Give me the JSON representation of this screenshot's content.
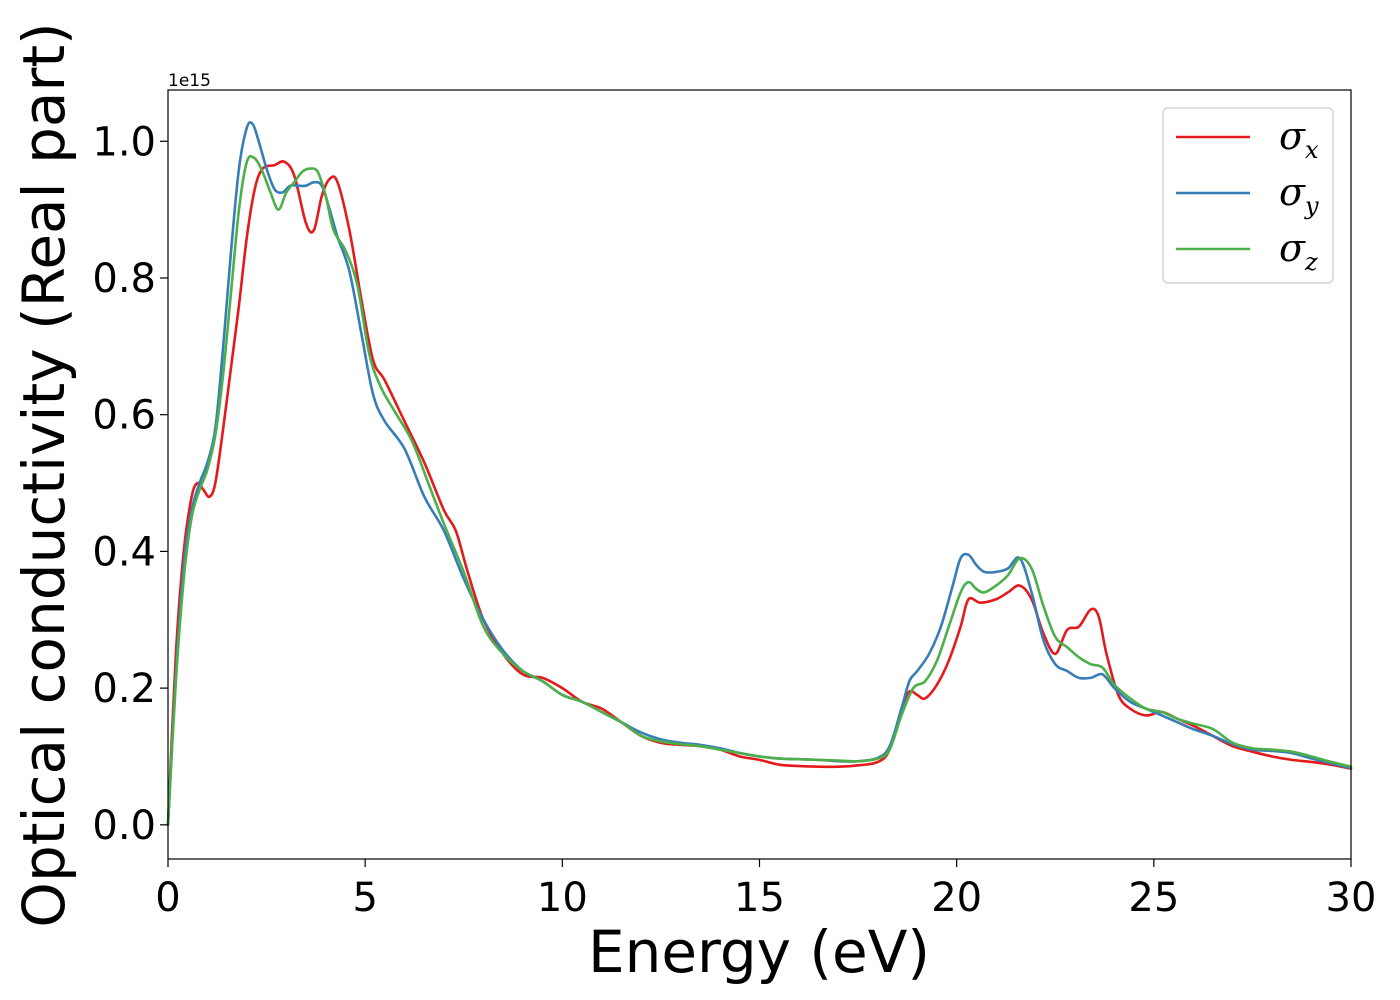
{
  "chart_data": {
    "type": "line",
    "title": "",
    "xlabel": "Energy (eV)",
    "ylabel": "Optical conductivity (Real part)",
    "y_offset_text": "1e15",
    "xlim": [
      0,
      30
    ],
    "ylim": [
      -0.05,
      1.075
    ],
    "x_ticks": [
      0,
      5,
      10,
      15,
      20,
      25,
      30
    ],
    "x_tick_labels": [
      "0",
      "5",
      "10",
      "15",
      "20",
      "25",
      "30"
    ],
    "y_ticks": [
      0.0,
      0.2,
      0.4,
      0.6,
      0.8,
      1.0
    ],
    "y_tick_labels": [
      "0.0",
      "0.2",
      "0.4",
      "0.6",
      "0.8",
      "1.0"
    ],
    "grid": false,
    "legend_position": "top-right",
    "series": [
      {
        "name": "σx",
        "legend_base": "σ",
        "legend_sub": "x",
        "color": "#e41a1c",
        "x": [
          0,
          0.2,
          0.4,
          0.6,
          0.75,
          0.9,
          1.05,
          1.2,
          1.4,
          1.6,
          1.8,
          2.0,
          2.2,
          2.4,
          2.7,
          2.95,
          3.2,
          3.5,
          3.7,
          3.9,
          4.1,
          4.3,
          4.6,
          4.9,
          5.2,
          5.5,
          6.0,
          6.5,
          7.0,
          7.3,
          7.6,
          8.0,
          8.5,
          9.0,
          9.5,
          10.0,
          10.5,
          11.0,
          11.5,
          12.0,
          12.5,
          13.0,
          13.5,
          14.0,
          14.5,
          15.0,
          15.5,
          16.0,
          16.5,
          17.0,
          17.5,
          18.0,
          18.3,
          18.6,
          18.8,
          19.0,
          19.2,
          19.5,
          19.8,
          20.1,
          20.3,
          20.6,
          21.0,
          21.3,
          21.6,
          21.9,
          22.2,
          22.5,
          22.8,
          23.1,
          23.4,
          23.6,
          23.8,
          24.1,
          24.4,
          24.8,
          25.2,
          25.6,
          26.0,
          26.5,
          27.0,
          27.5,
          28.0,
          28.5,
          29.0,
          29.5,
          30.0
        ],
        "values": [
          0.0,
          0.25,
          0.4,
          0.48,
          0.5,
          0.49,
          0.48,
          0.5,
          0.58,
          0.67,
          0.76,
          0.86,
          0.93,
          0.96,
          0.965,
          0.97,
          0.95,
          0.88,
          0.87,
          0.92,
          0.945,
          0.94,
          0.87,
          0.77,
          0.68,
          0.65,
          0.59,
          0.53,
          0.46,
          0.43,
          0.37,
          0.3,
          0.25,
          0.22,
          0.215,
          0.2,
          0.18,
          0.17,
          0.15,
          0.13,
          0.12,
          0.117,
          0.115,
          0.11,
          0.1,
          0.095,
          0.088,
          0.086,
          0.085,
          0.085,
          0.087,
          0.092,
          0.11,
          0.17,
          0.195,
          0.19,
          0.185,
          0.205,
          0.24,
          0.29,
          0.33,
          0.325,
          0.33,
          0.34,
          0.35,
          0.33,
          0.28,
          0.25,
          0.285,
          0.29,
          0.315,
          0.305,
          0.25,
          0.19,
          0.17,
          0.16,
          0.165,
          0.155,
          0.145,
          0.13,
          0.115,
          0.107,
          0.1,
          0.095,
          0.092,
          0.088,
          0.082
        ]
      },
      {
        "name": "σy",
        "legend_base": "σ",
        "legend_sub": "y",
        "color": "#377eb8",
        "x": [
          0,
          0.2,
          0.4,
          0.6,
          0.8,
          1.0,
          1.2,
          1.4,
          1.6,
          1.8,
          2.0,
          2.15,
          2.3,
          2.5,
          2.7,
          2.9,
          3.1,
          3.3,
          3.5,
          3.7,
          3.9,
          4.1,
          4.3,
          4.6,
          4.9,
          5.2,
          5.5,
          6.0,
          6.5,
          7.0,
          7.5,
          8.0,
          8.5,
          9.0,
          9.5,
          10.0,
          10.5,
          11.0,
          11.5,
          12.0,
          12.5,
          13.0,
          13.5,
          14.0,
          14.5,
          15.0,
          15.5,
          16.0,
          16.5,
          17.0,
          17.5,
          18.0,
          18.3,
          18.6,
          18.8,
          19.0,
          19.3,
          19.6,
          19.9,
          20.1,
          20.3,
          20.5,
          20.7,
          21.0,
          21.3,
          21.6,
          21.9,
          22.2,
          22.5,
          22.8,
          23.1,
          23.4,
          23.7,
          24.0,
          24.4,
          24.8,
          25.2,
          25.6,
          26.0,
          26.5,
          27.0,
          27.5,
          28.0,
          28.5,
          29.0,
          29.5,
          30.0
        ],
        "values": [
          0.0,
          0.22,
          0.38,
          0.46,
          0.5,
          0.53,
          0.58,
          0.7,
          0.84,
          0.96,
          1.02,
          1.025,
          1.0,
          0.96,
          0.93,
          0.925,
          0.935,
          0.935,
          0.935,
          0.94,
          0.935,
          0.9,
          0.86,
          0.81,
          0.72,
          0.63,
          0.59,
          0.55,
          0.48,
          0.43,
          0.36,
          0.3,
          0.255,
          0.225,
          0.21,
          0.19,
          0.18,
          0.165,
          0.15,
          0.135,
          0.125,
          0.12,
          0.117,
          0.112,
          0.105,
          0.1,
          0.097,
          0.096,
          0.095,
          0.093,
          0.093,
          0.098,
          0.115,
          0.17,
          0.21,
          0.225,
          0.25,
          0.29,
          0.35,
          0.39,
          0.395,
          0.38,
          0.37,
          0.37,
          0.375,
          0.39,
          0.34,
          0.27,
          0.235,
          0.225,
          0.215,
          0.215,
          0.22,
          0.2,
          0.18,
          0.17,
          0.16,
          0.15,
          0.14,
          0.13,
          0.118,
          0.11,
          0.108,
          0.105,
          0.097,
          0.09,
          0.083
        ]
      },
      {
        "name": "σz",
        "legend_base": "σ",
        "legend_sub": "z",
        "color": "#4daf4a",
        "x": [
          0,
          0.2,
          0.4,
          0.6,
          0.8,
          1.0,
          1.2,
          1.4,
          1.6,
          1.8,
          2.0,
          2.2,
          2.4,
          2.6,
          2.8,
          3.0,
          3.2,
          3.4,
          3.6,
          3.8,
          4.0,
          4.2,
          4.5,
          4.8,
          5.1,
          5.4,
          5.8,
          6.2,
          6.6,
          7.0,
          7.5,
          8.0,
          8.5,
          9.0,
          9.5,
          10.0,
          10.5,
          11.0,
          11.5,
          12.0,
          12.5,
          13.0,
          13.5,
          14.0,
          14.5,
          15.0,
          15.5,
          16.0,
          16.5,
          17.0,
          17.5,
          18.0,
          18.3,
          18.6,
          18.9,
          19.2,
          19.5,
          19.8,
          20.1,
          20.3,
          20.5,
          20.7,
          21.0,
          21.3,
          21.6,
          21.9,
          22.2,
          22.5,
          22.8,
          23.1,
          23.4,
          23.7,
          24.0,
          24.4,
          24.8,
          25.2,
          25.6,
          26.0,
          26.5,
          27.0,
          27.5,
          28.0,
          28.5,
          29.0,
          29.5,
          30.0
        ],
        "values": [
          0.0,
          0.21,
          0.36,
          0.45,
          0.49,
          0.52,
          0.57,
          0.66,
          0.78,
          0.9,
          0.97,
          0.975,
          0.955,
          0.925,
          0.9,
          0.925,
          0.94,
          0.955,
          0.96,
          0.955,
          0.92,
          0.87,
          0.84,
          0.79,
          0.69,
          0.64,
          0.6,
          0.56,
          0.5,
          0.44,
          0.37,
          0.29,
          0.25,
          0.225,
          0.21,
          0.19,
          0.18,
          0.165,
          0.15,
          0.13,
          0.122,
          0.118,
          0.115,
          0.11,
          0.105,
          0.1,
          0.097,
          0.096,
          0.095,
          0.094,
          0.093,
          0.097,
          0.11,
          0.16,
          0.2,
          0.21,
          0.24,
          0.29,
          0.34,
          0.355,
          0.345,
          0.34,
          0.35,
          0.365,
          0.39,
          0.375,
          0.32,
          0.275,
          0.26,
          0.245,
          0.235,
          0.23,
          0.205,
          0.185,
          0.17,
          0.165,
          0.155,
          0.148,
          0.14,
          0.12,
          0.112,
          0.11,
          0.107,
          0.1,
          0.092,
          0.085
        ]
      }
    ]
  }
}
